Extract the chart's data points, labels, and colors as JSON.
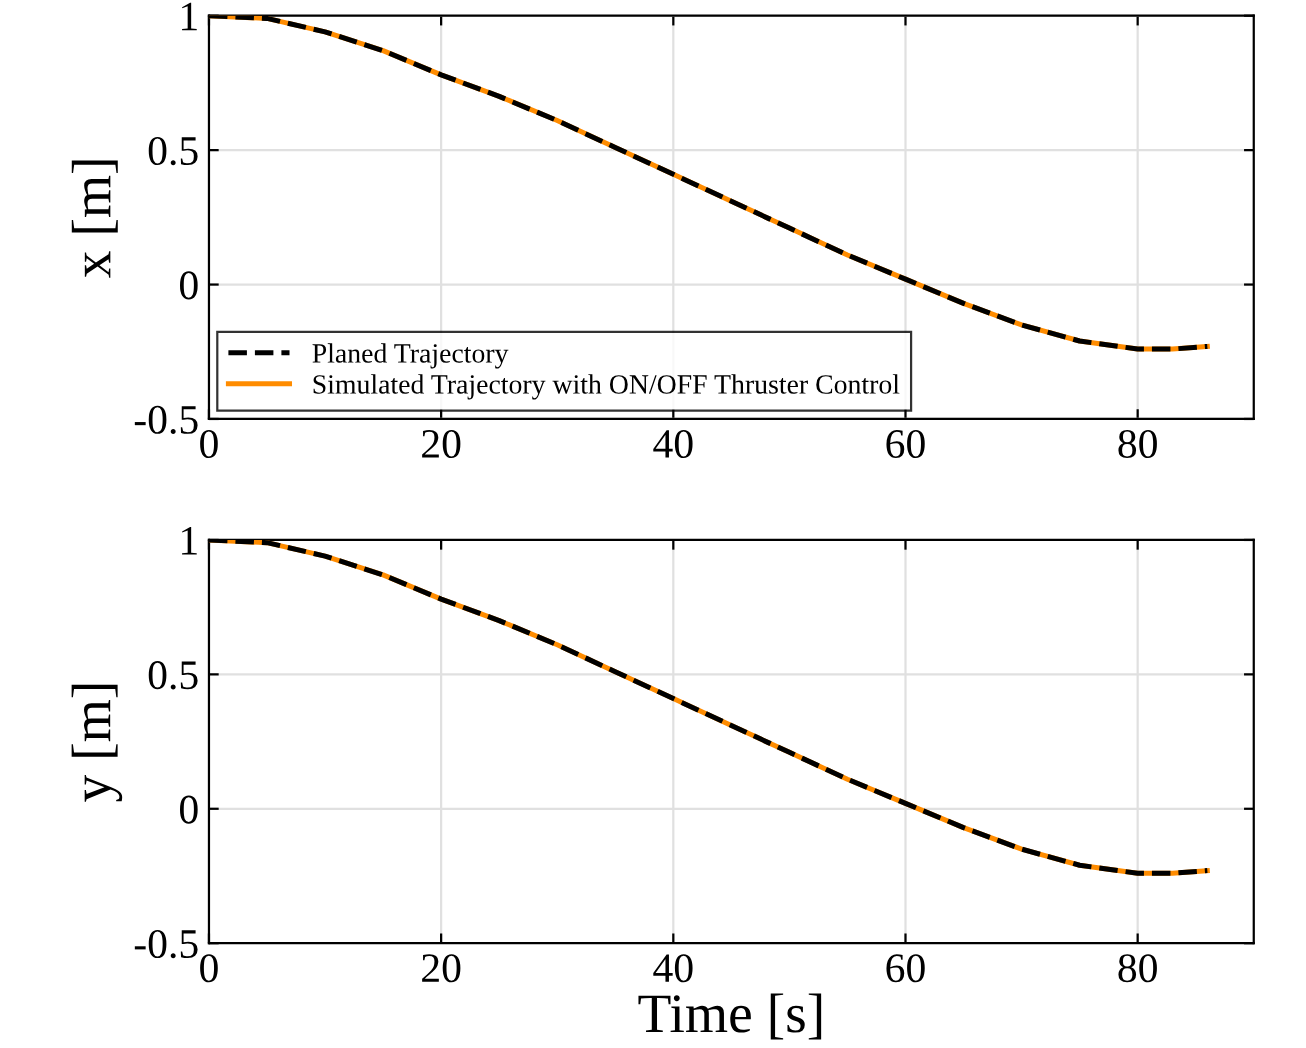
{
  "chart_data": [
    {
      "type": "line",
      "ylabel": "x [m]",
      "x": [
        0,
        5,
        10,
        15,
        20,
        25,
        30,
        35,
        40,
        45,
        50,
        55,
        60,
        65,
        70,
        75,
        80,
        83,
        86
      ],
      "xlim": [
        0,
        90
      ],
      "xticks": [
        0,
        20,
        40,
        60,
        80
      ],
      "ylim": [
        -0.5,
        1
      ],
      "yticks": [
        -0.5,
        0,
        0.5,
        1
      ],
      "grid": true,
      "legend": "bottom left",
      "series": [
        {
          "name": "Planed Trajectory",
          "color": "#000000",
          "line_style": "dashed",
          "values": [
            1,
            0.99,
            0.94,
            0.87,
            0.78,
            0.7,
            0.61,
            0.51,
            0.41,
            0.31,
            0.21,
            0.11,
            0.02,
            -0.07,
            -0.15,
            -0.21,
            -0.24,
            -0.24,
            -0.23
          ]
        },
        {
          "name": "Simulated Trajectory with ON/OFF Thruster Control",
          "color": "#ff8c00",
          "line_style": "solid",
          "values": [
            1,
            0.99,
            0.94,
            0.87,
            0.78,
            0.7,
            0.61,
            0.51,
            0.41,
            0.31,
            0.21,
            0.11,
            0.02,
            -0.07,
            -0.15,
            -0.21,
            -0.24,
            -0.24,
            -0.23
          ]
        }
      ]
    },
    {
      "type": "line",
      "ylabel": "y [m]",
      "xlabel": "Time [s]",
      "x": [
        0,
        5,
        10,
        15,
        20,
        25,
        30,
        35,
        40,
        45,
        50,
        55,
        60,
        65,
        70,
        75,
        80,
        83,
        86
      ],
      "xlim": [
        0,
        90
      ],
      "xticks": [
        0,
        20,
        40,
        60,
        80
      ],
      "ylim": [
        -0.5,
        1
      ],
      "yticks": [
        -0.5,
        0,
        0.5,
        1
      ],
      "grid": true,
      "series": [
        {
          "color": "#000000",
          "line_style": "dashed",
          "values": [
            1,
            0.99,
            0.94,
            0.87,
            0.78,
            0.7,
            0.61,
            0.51,
            0.41,
            0.31,
            0.21,
            0.11,
            0.02,
            -0.07,
            -0.15,
            -0.21,
            -0.24,
            -0.24,
            -0.23
          ]
        },
        {
          "color": "#ff8c00",
          "line_style": "solid",
          "values": [
            1,
            0.99,
            0.94,
            0.87,
            0.78,
            0.7,
            0.61,
            0.51,
            0.41,
            0.31,
            0.21,
            0.11,
            0.02,
            -0.07,
            -0.15,
            -0.21,
            -0.24,
            -0.24,
            -0.23
          ]
        }
      ]
    }
  ]
}
